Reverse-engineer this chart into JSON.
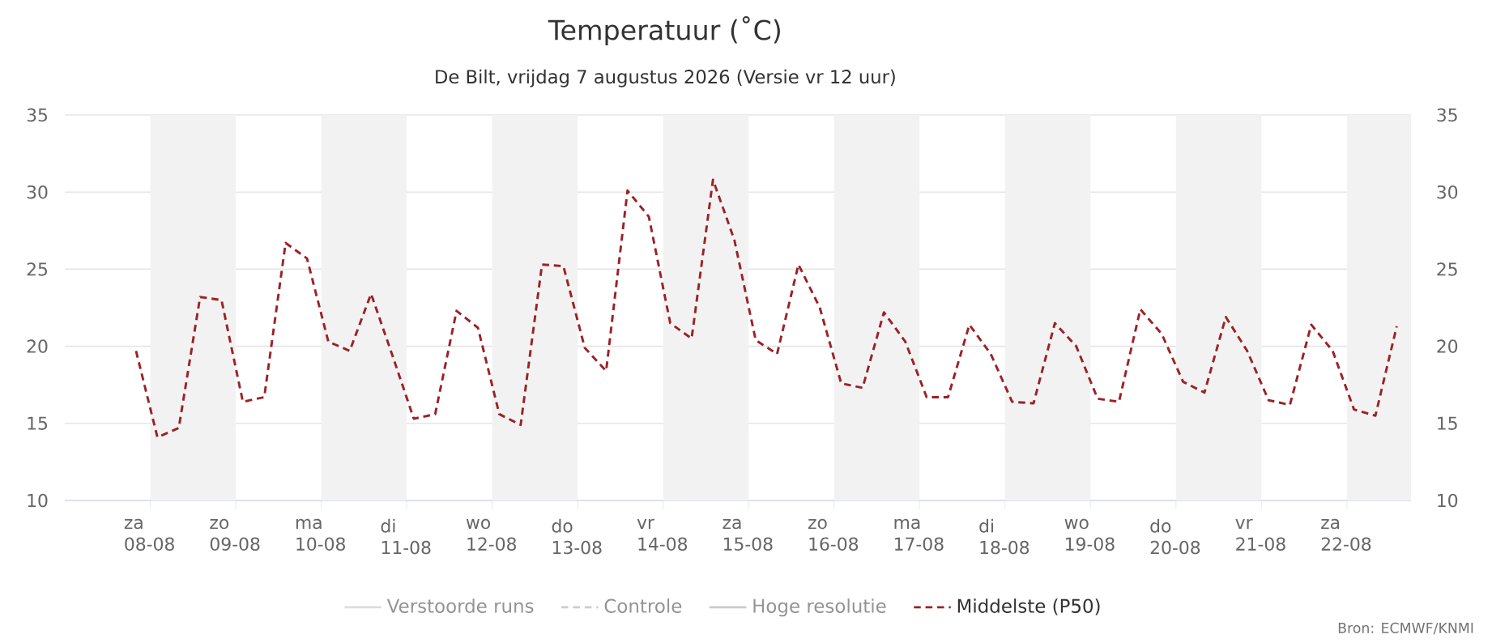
{
  "chart_data": {
    "type": "line",
    "title": "Temperatuur (˚C)",
    "subtitle": "De Bilt, vrijdag 7 augustus 2026 (Versie vr 12 uur)",
    "annotations": [
      "Bron: ECMWF/KNMI"
    ],
    "x": [
      "2026-08-07T20:00",
      "2026-08-08T02:00",
      "2026-08-08T08:00",
      "2026-08-08T14:00",
      "2026-08-08T20:00",
      "2026-08-09T02:00",
      "2026-08-09T08:00",
      "2026-08-09T14:00",
      "2026-08-09T20:00",
      "2026-08-10T02:00",
      "2026-08-10T08:00",
      "2026-08-10T14:00",
      "2026-08-10T20:00",
      "2026-08-11T02:00",
      "2026-08-11T08:00",
      "2026-08-11T14:00",
      "2026-08-11T20:00",
      "2026-08-12T02:00",
      "2026-08-12T08:00",
      "2026-08-12T14:00",
      "2026-08-12T20:00",
      "2026-08-13T02:00",
      "2026-08-13T08:00",
      "2026-08-13T14:00",
      "2026-08-13T20:00",
      "2026-08-14T02:00",
      "2026-08-14T08:00",
      "2026-08-14T14:00",
      "2026-08-14T20:00",
      "2026-08-15T02:00",
      "2026-08-15T08:00",
      "2026-08-15T14:00",
      "2026-08-15T20:00",
      "2026-08-16T02:00",
      "2026-08-16T08:00",
      "2026-08-16T14:00",
      "2026-08-16T20:00",
      "2026-08-17T02:00",
      "2026-08-17T08:00",
      "2026-08-17T14:00",
      "2026-08-17T20:00",
      "2026-08-18T02:00",
      "2026-08-18T08:00",
      "2026-08-18T14:00",
      "2026-08-18T20:00",
      "2026-08-19T02:00",
      "2026-08-19T08:00",
      "2026-08-19T14:00",
      "2026-08-19T20:00",
      "2026-08-20T02:00",
      "2026-08-20T08:00",
      "2026-08-20T14:00",
      "2026-08-20T20:00",
      "2026-08-21T02:00",
      "2026-08-21T08:00",
      "2026-08-21T14:00",
      "2026-08-21T20:00",
      "2026-08-22T02:00",
      "2026-08-22T08:00",
      "2026-08-22T14:00"
    ],
    "series": [
      {
        "name": "Verstoorde runs",
        "color": "#dddddd",
        "line_style": "solid",
        "values": [
          null,
          null,
          null,
          null,
          null,
          null,
          null,
          null,
          null,
          null,
          null,
          null,
          null,
          null,
          null,
          null,
          null,
          null,
          null,
          null,
          null,
          null,
          null,
          null,
          null,
          null,
          null,
          null,
          null,
          null,
          null,
          null,
          null,
          null,
          null,
          null,
          null,
          null,
          null,
          null,
          null,
          null,
          null,
          null,
          null,
          null,
          null,
          null,
          null,
          null,
          null,
          null,
          null,
          null,
          null,
          null,
          null,
          null,
          null,
          null
        ]
      },
      {
        "name": "Controle",
        "color": "#cccccc",
        "line_style": "dashed",
        "values": [
          null,
          null,
          null,
          null,
          null,
          null,
          null,
          null,
          null,
          null,
          null,
          null,
          null,
          null,
          null,
          null,
          null,
          null,
          null,
          null,
          null,
          null,
          null,
          null,
          null,
          null,
          null,
          null,
          null,
          null,
          null,
          null,
          null,
          null,
          null,
          null,
          null,
          null,
          null,
          null,
          null,
          null,
          null,
          null,
          null,
          null,
          null,
          null,
          null,
          null,
          null,
          null,
          null,
          null,
          null,
          null,
          null,
          null,
          null,
          null
        ]
      },
      {
        "name": "Hoge resolutie",
        "color": "#cccccc",
        "line_style": "solid",
        "values": [
          null,
          null,
          null,
          null,
          null,
          null,
          null,
          null,
          null,
          null,
          null,
          null,
          null,
          null,
          null,
          null,
          null,
          null,
          null,
          null,
          null,
          null,
          null,
          null,
          null,
          null,
          null,
          null,
          null,
          null,
          null,
          null,
          null,
          null,
          null,
          null,
          null,
          null,
          null,
          null,
          null,
          null,
          null,
          null,
          null,
          null,
          null,
          null,
          null,
          null,
          null,
          null,
          null,
          null,
          null,
          null,
          null,
          null,
          null,
          null
        ]
      },
      {
        "name": "Middelste (P50)",
        "color": "#9b2226",
        "line_style": "dashed",
        "values": [
          19.7,
          14.1,
          14.7,
          23.2,
          23.0,
          16.4,
          16.7,
          26.7,
          25.7,
          20.3,
          19.7,
          23.4,
          19.4,
          15.3,
          15.6,
          22.3,
          21.2,
          15.6,
          14.9,
          25.3,
          25.2,
          19.9,
          18.4,
          30.1,
          28.4,
          21.5,
          20.5,
          30.8,
          26.9,
          20.4,
          19.5,
          25.3,
          22.5,
          17.6,
          17.3,
          22.2,
          20.3,
          16.7,
          16.7,
          21.4,
          19.5,
          16.4,
          16.3,
          21.5,
          20.0,
          16.6,
          16.4,
          22.4,
          20.8,
          17.7,
          17.0,
          21.9,
          19.7,
          16.5,
          16.2,
          21.4,
          19.7,
          15.9,
          15.5,
          21.3
        ]
      }
    ],
    "xlim": [
      "2026-08-07",
      "2026-08-22T18:00"
    ],
    "xticks": [
      {
        "value": "2026-08-08",
        "label": "za 08-08"
      },
      {
        "value": "2026-08-09",
        "label": "zo 09-08"
      },
      {
        "value": "2026-08-10",
        "label": "ma 10-08"
      },
      {
        "value": "2026-08-11",
        "label": "di 11-08"
      },
      {
        "value": "2026-08-12",
        "label": "wo 12-08"
      },
      {
        "value": "2026-08-13",
        "label": "do 13-08"
      },
      {
        "value": "2026-08-14",
        "label": "vr 14-08"
      },
      {
        "value": "2026-08-15",
        "label": "za 15-08"
      },
      {
        "value": "2026-08-16",
        "label": "zo 16-08"
      },
      {
        "value": "2026-08-17",
        "label": "ma 17-08"
      },
      {
        "value": "2026-08-18",
        "label": "di 18-08"
      },
      {
        "value": "2026-08-19",
        "label": "wo 19-08"
      },
      {
        "value": "2026-08-20",
        "label": "do 20-08"
      },
      {
        "value": "2026-08-21",
        "label": "vr 21-08"
      },
      {
        "value": "2026-08-22",
        "label": "za 22-08"
      }
    ],
    "ylim": [
      10,
      35
    ],
    "yticks": [
      10,
      15,
      20,
      25,
      30,
      35
    ],
    "y2lim": [
      10,
      35
    ],
    "y2ticks": [
      10,
      15,
      20,
      25,
      30,
      35
    ],
    "bands": [
      {
        "axis": "x",
        "from": "2026-08-08",
        "to": "2026-08-09",
        "color": "#f2f2f2"
      },
      {
        "axis": "x",
        "from": "2026-08-10",
        "to": "2026-08-11",
        "color": "#f2f2f2"
      },
      {
        "axis": "x",
        "from": "2026-08-12",
        "to": "2026-08-13",
        "color": "#f2f2f2"
      },
      {
        "axis": "x",
        "from": "2026-08-14",
        "to": "2026-08-15",
        "color": "#f2f2f2"
      },
      {
        "axis": "x",
        "from": "2026-08-16",
        "to": "2026-08-17",
        "color": "#f2f2f2"
      },
      {
        "axis": "x",
        "from": "2026-08-18",
        "to": "2026-08-19",
        "color": "#f2f2f2"
      },
      {
        "axis": "x",
        "from": "2026-08-20",
        "to": "2026-08-21",
        "color": "#f2f2f2"
      },
      {
        "axis": "x",
        "from": "2026-08-22",
        "to": "2026-08-22T18:00",
        "color": "#f2f2f2"
      }
    ],
    "grid": "y",
    "legend": "bottom"
  }
}
